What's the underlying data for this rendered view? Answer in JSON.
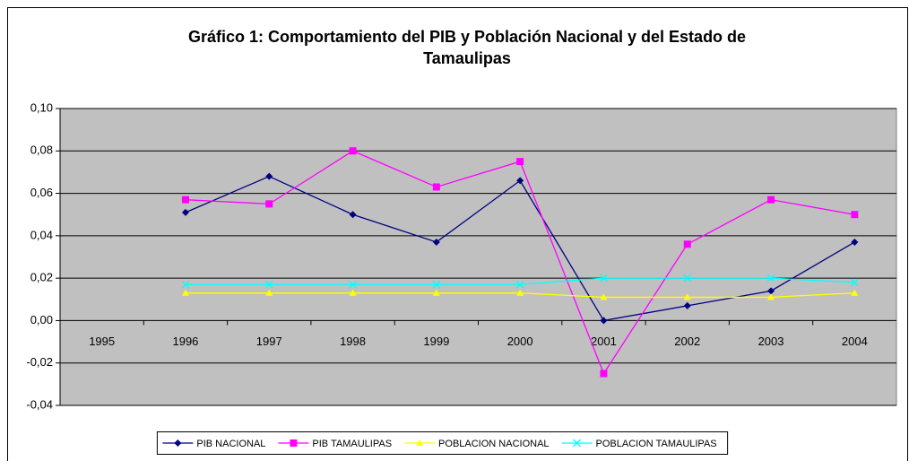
{
  "chart_data": {
    "type": "line",
    "title": [
      "Gráfico 1: Comportamiento del PIB y Población Nacional y del Estado de",
      "Tamaulipas"
    ],
    "categories": [
      "1995",
      "1996",
      "1997",
      "1998",
      "1999",
      "2000",
      "2001",
      "2002",
      "2003",
      "2004"
    ],
    "series": [
      {
        "name": "PIB NACIONAL",
        "color": "#000080",
        "marker": "diamond",
        "values": [
          null,
          0.051,
          0.068,
          0.05,
          0.037,
          0.066,
          0.0,
          0.007,
          0.014,
          0.037
        ]
      },
      {
        "name": "PIB TAMAULIPAS",
        "color": "#ff00ff",
        "marker": "square",
        "values": [
          null,
          0.057,
          0.055,
          0.08,
          0.063,
          0.075,
          -0.025,
          0.036,
          0.057,
          0.05
        ]
      },
      {
        "name": "POBLACION NACIONAL",
        "color": "#ffff00",
        "marker": "triangle",
        "values": [
          null,
          0.013,
          0.013,
          0.013,
          0.013,
          0.013,
          0.011,
          0.011,
          0.011,
          0.013
        ]
      },
      {
        "name": "POBLACION TAMAULIPAS",
        "color": "#00ffff",
        "marker": "x",
        "values": [
          null,
          0.017,
          0.017,
          0.017,
          0.017,
          0.017,
          0.02,
          0.02,
          0.02,
          0.018
        ]
      }
    ],
    "ylim": [
      -0.04,
      0.1
    ],
    "yticks": [
      {
        "value": -0.04,
        "label": "-0,04"
      },
      {
        "value": -0.02,
        "label": "-0,02"
      },
      {
        "value": 0,
        "label": "0,00"
      },
      {
        "value": 0.02,
        "label": "0,02"
      },
      {
        "value": 0.04,
        "label": "0,04"
      },
      {
        "value": 0.06,
        "label": "0,06"
      },
      {
        "value": 0.08,
        "label": "0,08"
      },
      {
        "value": 0.1,
        "label": "0,10"
      }
    ],
    "grid": true,
    "plot_background": "#c0c0c0",
    "legend_position": "bottom"
  }
}
